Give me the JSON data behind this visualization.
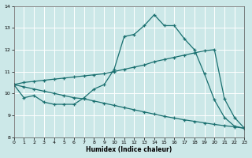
{
  "xlabel": "Humidex (Indice chaleur)",
  "bg_color": "#cce8e8",
  "grid_color": "#b0d8d8",
  "line_color": "#1a7070",
  "xlim": [
    0,
    23
  ],
  "ylim": [
    8,
    14
  ],
  "yticks": [
    8,
    9,
    10,
    11,
    12,
    13,
    14
  ],
  "xticks": [
    0,
    1,
    2,
    3,
    4,
    5,
    6,
    7,
    8,
    9,
    10,
    11,
    12,
    13,
    14,
    15,
    16,
    17,
    18,
    19,
    20,
    21,
    22,
    23
  ],
  "curve1_x": [
    0,
    1,
    2,
    3,
    4,
    5,
    6,
    7,
    8,
    9,
    10,
    11,
    12,
    13,
    14,
    15,
    16,
    17,
    18,
    19,
    20,
    21,
    22,
    23
  ],
  "curve1_y": [
    10.4,
    9.8,
    9.9,
    9.6,
    9.5,
    9.5,
    9.5,
    9.8,
    10.2,
    10.4,
    11.1,
    12.6,
    12.7,
    13.1,
    13.6,
    13.1,
    13.1,
    12.5,
    12.0,
    10.9,
    9.7,
    8.9,
    8.5,
    8.4
  ],
  "curve2_x": [
    0,
    1,
    2,
    3,
    4,
    5,
    6,
    7,
    8,
    9,
    10,
    11,
    12,
    13,
    14,
    15,
    16,
    17,
    18,
    19,
    20,
    21,
    22,
    23
  ],
  "curve2_y": [
    10.4,
    10.5,
    10.55,
    10.6,
    10.65,
    10.7,
    10.75,
    10.8,
    10.85,
    10.9,
    11.0,
    11.1,
    11.2,
    11.3,
    11.45,
    11.55,
    11.65,
    11.75,
    11.85,
    11.95,
    12.0,
    9.75,
    8.9,
    8.4
  ],
  "curve3_x": [
    0,
    1,
    2,
    3,
    4,
    5,
    6,
    7,
    8,
    9,
    10,
    11,
    12,
    13,
    14,
    15,
    16,
    17,
    18,
    19,
    20,
    21,
    22,
    23
  ],
  "curve3_y": [
    10.4,
    10.3,
    10.2,
    10.1,
    10.0,
    9.9,
    9.8,
    9.75,
    9.65,
    9.55,
    9.45,
    9.35,
    9.25,
    9.15,
    9.05,
    8.95,
    8.87,
    8.79,
    8.72,
    8.65,
    8.58,
    8.52,
    8.47,
    8.4
  ]
}
